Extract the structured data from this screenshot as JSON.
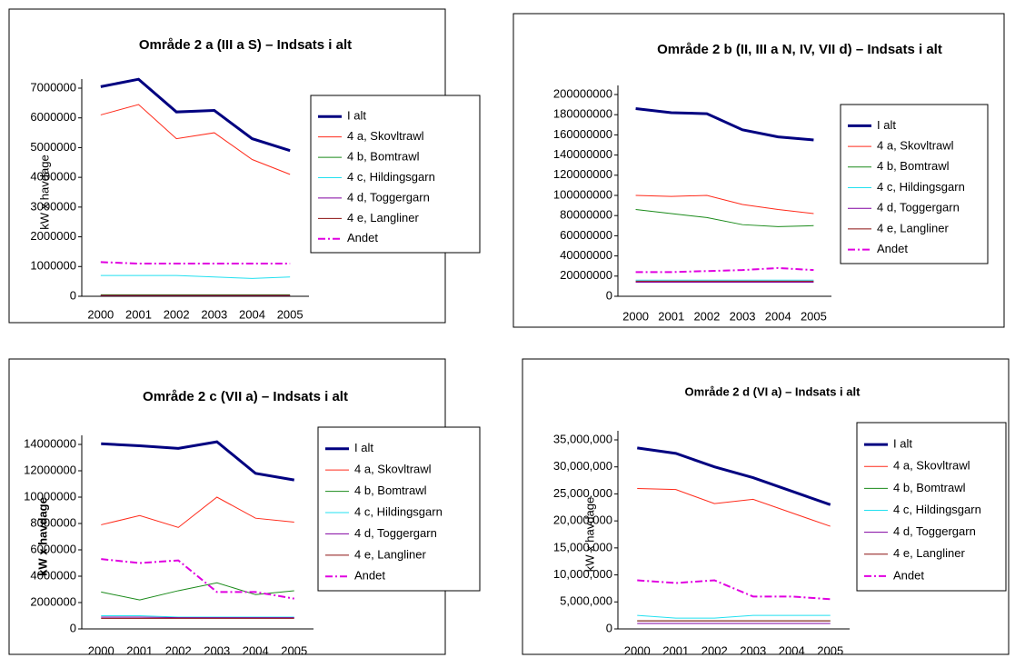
{
  "chart_data": [
    {
      "type": "line",
      "title": "Område 2 a (III a S) – Indsats i alt",
      "y_label": "kW x havdage",
      "categories": [
        "2000",
        "2001",
        "2002",
        "2003",
        "2004",
        "2005"
      ],
      "ylim": [
        0,
        7000000
      ],
      "yticks": [
        0,
        1000000,
        2000000,
        3000000,
        4000000,
        5000000,
        6000000,
        7000000
      ],
      "series": [
        {
          "name": "I alt",
          "color": "#000080",
          "width": 3,
          "values": [
            7050000,
            7300000,
            6200000,
            6250000,
            5300000,
            4900000
          ]
        },
        {
          "name": "4 a, Skovltrawl",
          "color": "#ff2a1a",
          "values": [
            6100000,
            6450000,
            5300000,
            5500000,
            4600000,
            4100000
          ]
        },
        {
          "name": "4 b, Bomtrawl",
          "color": "#1a8a1a",
          "values": [
            50000,
            50000,
            50000,
            50000,
            50000,
            50000
          ]
        },
        {
          "name": "4 c, Hildingsgarn",
          "color": "#22e0f0",
          "values": [
            700000,
            700000,
            700000,
            650000,
            600000,
            650000
          ]
        },
        {
          "name": "4 d, Toggergarn",
          "color": "#8000a0",
          "values": [
            20000,
            20000,
            20000,
            20000,
            20000,
            20000
          ]
        },
        {
          "name": "4 e, Langliner",
          "color": "#8b1010",
          "values": [
            30000,
            30000,
            30000,
            30000,
            30000,
            30000
          ]
        },
        {
          "name": "Andet",
          "color": "#e000e0",
          "dash": "dashdot",
          "values": [
            1150000,
            1100000,
            1100000,
            1100000,
            1100000,
            1100000
          ]
        }
      ]
    },
    {
      "type": "line",
      "title": "Område 2 b (II, III a N, IV, VII d) – Indsats i alt",
      "categories": [
        "2000",
        "2001",
        "2002",
        "2003",
        "2004",
        "2005"
      ],
      "ylim": [
        0,
        200000000
      ],
      "yticks": [
        0,
        20000000,
        40000000,
        60000000,
        80000000,
        100000000,
        120000000,
        140000000,
        160000000,
        180000000,
        200000000
      ],
      "series": [
        {
          "name": "I alt",
          "color": "#000080",
          "width": 3,
          "values": [
            186000000,
            182000000,
            181000000,
            165000000,
            158000000,
            155000000
          ]
        },
        {
          "name": "4 a, Skovltrawl",
          "color": "#ff2a1a",
          "values": [
            100000000,
            99000000,
            100000000,
            91000000,
            86000000,
            82000000
          ]
        },
        {
          "name": "4 b, Bomtrawl",
          "color": "#1a8a1a",
          "values": [
            86000000,
            82000000,
            78000000,
            71000000,
            69000000,
            70000000
          ]
        },
        {
          "name": "4 c, Hildingsgarn",
          "color": "#22e0f0",
          "values": [
            16000000,
            16000000,
            16000000,
            16000000,
            16000000,
            16000000
          ]
        },
        {
          "name": "4 d, Toggergarn",
          "color": "#8000a0",
          "values": [
            14000000,
            14000000,
            14000000,
            14000000,
            14000000,
            14000000
          ]
        },
        {
          "name": "4 e, Langliner",
          "color": "#8b1010",
          "values": [
            15000000,
            15000000,
            15000000,
            15000000,
            15000000,
            15000000
          ]
        },
        {
          "name": "Andet",
          "color": "#e000e0",
          "dash": "dashdot",
          "values": [
            24000000,
            24000000,
            25000000,
            26000000,
            28000000,
            26000000
          ]
        }
      ]
    },
    {
      "type": "line",
      "title": "Område 2 c (VII a) – Indsats i alt",
      "y_label": "kW x havdage",
      "categories": [
        "2000",
        "2001",
        "2002",
        "2003",
        "2004",
        "2005"
      ],
      "ylim": [
        0,
        14000000
      ],
      "yticks": [
        0,
        2000000,
        4000000,
        6000000,
        8000000,
        10000000,
        12000000,
        14000000
      ],
      "series": [
        {
          "name": "I alt",
          "color": "#000080",
          "width": 3,
          "values": [
            14050000,
            13900000,
            13700000,
            14200000,
            11800000,
            11300000
          ]
        },
        {
          "name": "4 a, Skovltrawl",
          "color": "#ff2a1a",
          "values": [
            7900000,
            8600000,
            7700000,
            10000000,
            8400000,
            8100000
          ]
        },
        {
          "name": "4 b, Bomtrawl",
          "color": "#1a8a1a",
          "values": [
            2800000,
            2200000,
            2900000,
            3500000,
            2600000,
            2900000
          ]
        },
        {
          "name": "4 c, Hildingsgarn",
          "color": "#22e0f0",
          "values": [
            1000000,
            1000000,
            900000,
            900000,
            900000,
            900000
          ]
        },
        {
          "name": "4 d, Toggergarn",
          "color": "#8000a0",
          "values": [
            900000,
            900000,
            850000,
            850000,
            850000,
            850000
          ]
        },
        {
          "name": "4 e, Langliner",
          "color": "#8b1010",
          "values": [
            800000,
            800000,
            800000,
            800000,
            800000,
            800000
          ]
        },
        {
          "name": "Andet",
          "color": "#e000e0",
          "dash": "dashdot",
          "values": [
            5300000,
            5000000,
            5200000,
            2800000,
            2800000,
            2300000
          ]
        }
      ]
    },
    {
      "type": "line",
      "title": "Område 2 d (VI a) – Indsats i alt",
      "y_label": "kW x havdage",
      "categories": [
        "2000",
        "2001",
        "2002",
        "2003",
        "2004",
        "2005"
      ],
      "ylim": [
        0,
        35000000
      ],
      "yticks": [
        0,
        {
          "value": 5000000,
          "label": "5,000,000"
        },
        {
          "value": 10000000,
          "label": "10,000,000"
        },
        {
          "value": 15000000,
          "label": "15,000,000"
        },
        {
          "value": 20000000,
          "label": "20,000,000"
        },
        {
          "value": 25000000,
          "label": "25,000,000"
        },
        {
          "value": 30000000,
          "label": "30,000,000"
        },
        {
          "value": 35000000,
          "label": "35,000,000"
        }
      ],
      "series": [
        {
          "name": "I alt",
          "color": "#000080",
          "width": 3,
          "values": [
            33500000,
            32500000,
            30000000,
            28000000,
            25500000,
            23000000
          ]
        },
        {
          "name": "4 a, Skovltrawl",
          "color": "#ff2a1a",
          "values": [
            26000000,
            25800000,
            23200000,
            24000000,
            21500000,
            19000000
          ]
        },
        {
          "name": "4 b, Bomtrawl",
          "color": "#1a8a1a",
          "values": [
            1500000,
            1500000,
            1500000,
            1500000,
            1500000,
            1500000
          ]
        },
        {
          "name": "4 c, Hildingsgarn",
          "color": "#22e0f0",
          "values": [
            2500000,
            2000000,
            2000000,
            2500000,
            2500000,
            2500000
          ]
        },
        {
          "name": "4 d, Toggergarn",
          "color": "#8000a0",
          "values": [
            1000000,
            1000000,
            1000000,
            1000000,
            1000000,
            1000000
          ]
        },
        {
          "name": "4 e, Langliner",
          "color": "#8b1010",
          "values": [
            1500000,
            1500000,
            1500000,
            1500000,
            1500000,
            1500000
          ]
        },
        {
          "name": "Andet",
          "color": "#e000e0",
          "dash": "dashdot",
          "values": [
            9000000,
            8500000,
            9000000,
            6000000,
            6000000,
            5500000
          ]
        }
      ]
    }
  ]
}
